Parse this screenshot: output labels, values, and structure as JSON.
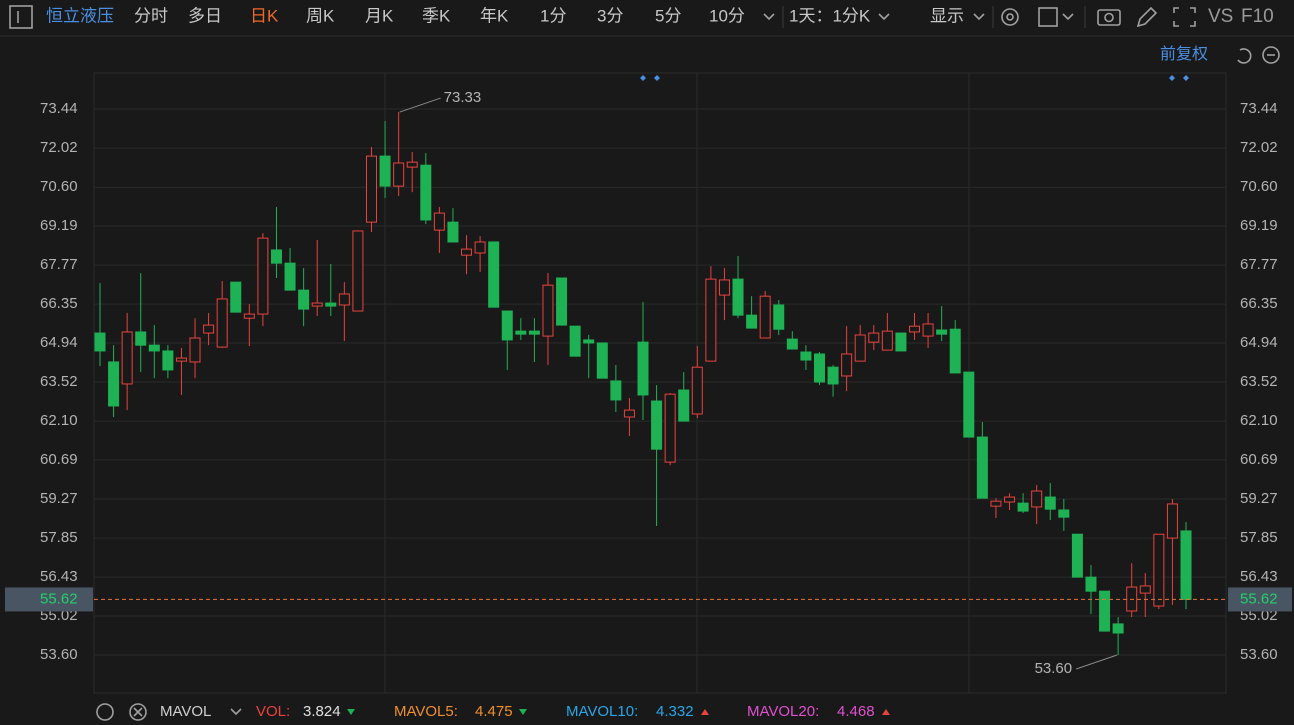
{
  "toolbar": {
    "stock_name": "恒立液压",
    "tabs": [
      "分时",
      "多日",
      "日K",
      "周K",
      "月K",
      "季K",
      "年K",
      "1分",
      "3分",
      "5分",
      "10分"
    ],
    "period": "1天：1分K",
    "display": "显示",
    "vs": "VS",
    "f10": "F10"
  },
  "adjust": "前复权",
  "chart_data": {
    "type": "candlestick",
    "open": [
      65.3,
      64.25,
      63.45,
      65.34,
      64.86,
      64.65,
      64.28,
      64.25,
      65.3,
      64.79,
      67.15,
      65.84,
      65.99,
      68.32,
      67.84,
      66.86,
      66.28,
      66.39,
      66.32,
      66.1,
      69.33,
      71.73,
      70.64,
      71.33,
      71.4,
      69.04,
      69.33,
      68.13,
      68.21,
      68.61,
      66.1,
      65.37,
      65.37,
      65.19,
      67.3,
      65.55,
      65.05,
      64.94,
      63.56,
      62.25,
      64.97,
      62.83,
      60.61,
      63.23,
      62.36,
      64.28,
      66.68,
      67.26,
      65.95,
      65.12,
      66.32,
      65.08,
      64.61,
      64.54,
      64.06,
      63.74,
      64.28,
      64.97,
      64.68,
      65.3,
      65.34,
      65.19,
      65.41,
      65.44,
      63.88,
      61.52,
      59.01,
      59.16,
      59.12,
      58.98,
      59.34,
      58.87,
      57.99,
      56.43,
      55.92,
      54.73,
      55.2,
      55.85,
      55.38,
      57.85,
      58.11
    ],
    "high": [
      67.12,
      64.86,
      66.03,
      67.48,
      65.59,
      64.86,
      64.76,
      65.84,
      66.03,
      67.19,
      67.15,
      66.35,
      68.93,
      69.88,
      68.39,
      67.66,
      68.68,
      67.81,
      67.15,
      69.01,
      72.06,
      73.0,
      73.33,
      71.88,
      71.84,
      69.88,
      69.84,
      68.86,
      68.82,
      68.61,
      66.1,
      65.84,
      65.84,
      67.48,
      67.3,
      65.55,
      65.23,
      64.94,
      64.14,
      62.94,
      66.43,
      63.41,
      63.12,
      63.88,
      64.83,
      67.73,
      67.66,
      68.1,
      66.64,
      66.83,
      66.5,
      65.37,
      64.86,
      64.61,
      64.14,
      65.55,
      65.59,
      65.59,
      66.03,
      65.3,
      66.03,
      66.03,
      66.28,
      65.77,
      63.88,
      62.07,
      59.3,
      59.48,
      59.48,
      59.78,
      59.85,
      59.27,
      57.99,
      56.87,
      55.92,
      54.98,
      56.94,
      56.58,
      57.99,
      59.27,
      58.43
    ],
    "low": [
      64.1,
      62.25,
      62.5,
      63.88,
      63.66,
      63.66,
      63.05,
      63.66,
      64.86,
      64.76,
      66.06,
      64.83,
      65.55,
      67.3,
      66.86,
      65.55,
      65.92,
      65.92,
      65.01,
      66.1,
      68.97,
      70.21,
      70.28,
      70.42,
      69.26,
      68.21,
      68.61,
      67.44,
      67.52,
      66.24,
      63.96,
      65.05,
      64.25,
      64.14,
      65.59,
      64.46,
      63.66,
      63.66,
      62.43,
      61.56,
      62.14,
      58.29,
      60.5,
      62.1,
      62.21,
      64.28,
      65.77,
      65.84,
      65.48,
      65.12,
      65.23,
      64.72,
      63.96,
      63.41,
      62.99,
      63.19,
      64.28,
      64.68,
      64.68,
      64.65,
      65.05,
      64.76,
      65.01,
      63.85,
      61.52,
      59.3,
      58.58,
      58.87,
      58.76,
      58.36,
      58.51,
      58.11,
      56.43,
      55.09,
      54.47,
      53.6,
      54.98,
      54.98,
      55.27,
      55.42,
      55.27
    ],
    "close": [
      64.65,
      62.65,
      65.34,
      64.86,
      64.65,
      63.96,
      64.39,
      65.12,
      65.59,
      66.54,
      66.06,
      65.99,
      68.75,
      67.84,
      66.86,
      66.17,
      66.39,
      66.28,
      66.72,
      69.01,
      71.73,
      70.64,
      71.48,
      71.51,
      69.41,
      69.66,
      68.61,
      68.35,
      68.61,
      66.24,
      65.05,
      65.26,
      65.26,
      67.04,
      65.59,
      64.46,
      64.94,
      63.66,
      62.87,
      62.5,
      63.05,
      61.08,
      63.08,
      62.1,
      64.06,
      67.26,
      67.23,
      65.95,
      65.48,
      66.64,
      65.44,
      64.72,
      64.32,
      63.52,
      63.45,
      64.54,
      65.23,
      65.3,
      65.37,
      64.65,
      65.55,
      65.63,
      65.26,
      63.85,
      61.52,
      59.3,
      59.19,
      59.34,
      58.83,
      59.56,
      58.9,
      58.61,
      56.43,
      55.92,
      54.47,
      54.4,
      56.07,
      56.11,
      57.99,
      59.09,
      55.62
    ],
    "up_color": "#e8433e",
    "down_color": "#1fb255",
    "ylim": [
      52.22,
      74.75
    ],
    "yticks": [
      73.44,
      72.02,
      {
        "value": 70.6,
        "label": "70.60"
      },
      69.19,
      67.77,
      66.35,
      64.94,
      63.52,
      {
        "value": 62.1,
        "label": "62.10"
      },
      60.69,
      59.27,
      57.85,
      56.43,
      55.02,
      {
        "value": 53.6,
        "label": "53.60"
      }
    ],
    "grid": true,
    "last_price": 55.62,
    "max_mark": 73.33,
    "min_mark": {
      "value": 53.6,
      "label": "53.60"
    }
  },
  "indicator": {
    "name": "MAVOL",
    "items": [
      {
        "label": "VOL:",
        "value": 3.824
      },
      {
        "label": "MAVOL5:",
        "value": 4.475
      },
      {
        "label": "MAVOL10:",
        "value": 4.332
      },
      {
        "label": "MAVOL20:",
        "value": 4.468
      }
    ]
  }
}
